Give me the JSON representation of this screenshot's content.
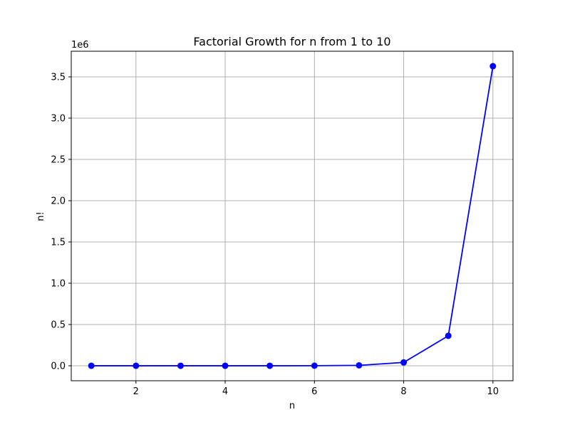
{
  "chart_data": {
    "type": "line",
    "title": "Factorial Growth for n from 1 to 10",
    "xlabel": "n",
    "ylabel": "n!",
    "y_offset_label": "1e6",
    "x": [
      1,
      2,
      3,
      4,
      5,
      6,
      7,
      8,
      9,
      10
    ],
    "series": [
      {
        "values": [
          1,
          2,
          6,
          24,
          120,
          720,
          5040,
          40320,
          362880,
          3628800
        ]
      }
    ],
    "xlim": [
      0.55,
      10.45
    ],
    "ylim": [
      -181439,
      3810239
    ],
    "xticks": [
      2,
      4,
      6,
      8,
      10
    ],
    "xtick_labels": [
      "2",
      "4",
      "6",
      "8",
      "10"
    ],
    "yticks": [
      0,
      500000,
      1000000,
      1500000,
      2000000,
      2500000,
      3000000,
      3500000
    ],
    "ytick_labels": [
      "0.0",
      "0.5",
      "1.0",
      "1.5",
      "2.0",
      "2.5",
      "3.0",
      "3.5"
    ],
    "grid": true,
    "line_color": "#0000ff",
    "marker": "circle"
  }
}
